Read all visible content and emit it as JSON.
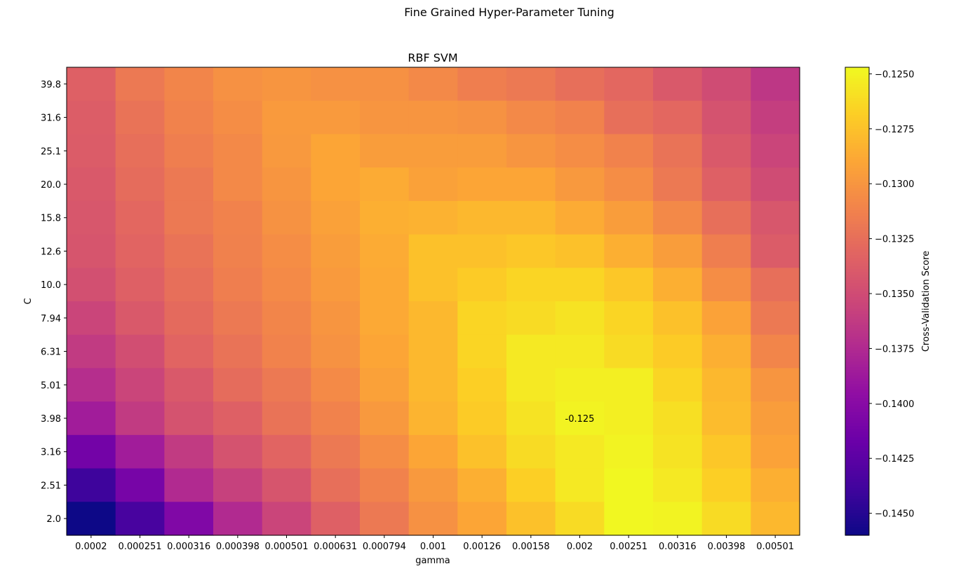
{
  "chart_data": {
    "type": "heatmap",
    "suptitle": "Fine Grained Hyper-Parameter Tuning",
    "title": "RBF SVM",
    "xlabel": "gamma",
    "ylabel": "C",
    "x_categories": [
      "0.0002",
      "0.000251",
      "0.000316",
      "0.000398",
      "0.000501",
      "0.000631",
      "0.000794",
      "0.001",
      "0.00126",
      "0.00158",
      "0.002",
      "0.00251",
      "0.00316",
      "0.00398",
      "0.00501"
    ],
    "y_categories": [
      "39.8",
      "31.6",
      "25.1",
      "20.0",
      "15.8",
      "12.6",
      "10.0",
      "7.94",
      "6.31",
      "5.01",
      "3.98",
      "3.16",
      "2.51",
      "2.0"
    ],
    "values": [
      [
        -0.1335,
        -0.1318,
        -0.131,
        -0.1303,
        -0.13,
        -0.1303,
        -0.1303,
        -0.1308,
        -0.1315,
        -0.1318,
        -0.1325,
        -0.133,
        -0.134,
        -0.135,
        -0.1365
      ],
      [
        -0.1337,
        -0.1322,
        -0.1312,
        -0.1305,
        -0.1297,
        -0.1297,
        -0.13,
        -0.13,
        -0.1302,
        -0.1308,
        -0.1312,
        -0.1325,
        -0.133,
        -0.1345,
        -0.136
      ],
      [
        -0.1338,
        -0.1325,
        -0.1315,
        -0.1308,
        -0.1298,
        -0.129,
        -0.1295,
        -0.1295,
        -0.1295,
        -0.13,
        -0.1305,
        -0.1312,
        -0.1322,
        -0.134,
        -0.1355
      ],
      [
        -0.134,
        -0.1327,
        -0.1318,
        -0.1308,
        -0.13,
        -0.129,
        -0.1287,
        -0.1293,
        -0.129,
        -0.129,
        -0.1298,
        -0.1305,
        -0.1318,
        -0.1335,
        -0.135
      ],
      [
        -0.1342,
        -0.133,
        -0.1318,
        -0.1312,
        -0.1302,
        -0.1293,
        -0.1285,
        -0.1283,
        -0.128,
        -0.128,
        -0.1287,
        -0.1295,
        -0.1308,
        -0.1325,
        -0.1342
      ],
      [
        -0.1343,
        -0.1332,
        -0.1322,
        -0.1313,
        -0.1305,
        -0.1295,
        -0.1287,
        -0.1275,
        -0.1275,
        -0.1272,
        -0.1275,
        -0.1285,
        -0.1295,
        -0.1315,
        -0.1338
      ],
      [
        -0.1347,
        -0.1335,
        -0.1325,
        -0.1315,
        -0.1307,
        -0.1297,
        -0.1288,
        -0.1275,
        -0.127,
        -0.1265,
        -0.1265,
        -0.1272,
        -0.1285,
        -0.1305,
        -0.1325
      ],
      [
        -0.1355,
        -0.134,
        -0.1328,
        -0.1318,
        -0.131,
        -0.13,
        -0.1288,
        -0.128,
        -0.1265,
        -0.1262,
        -0.1258,
        -0.1265,
        -0.1275,
        -0.1292,
        -0.1318
      ],
      [
        -0.1362,
        -0.1348,
        -0.1332,
        -0.1322,
        -0.1312,
        -0.1302,
        -0.129,
        -0.128,
        -0.1265,
        -0.1255,
        -0.1255,
        -0.1262,
        -0.127,
        -0.1285,
        -0.131
      ],
      [
        -0.1372,
        -0.1355,
        -0.134,
        -0.1327,
        -0.1318,
        -0.1307,
        -0.1293,
        -0.128,
        -0.1268,
        -0.1255,
        -0.1252,
        -0.1252,
        -0.1265,
        -0.128,
        -0.13
      ],
      [
        -0.1385,
        -0.1362,
        -0.1345,
        -0.1335,
        -0.1322,
        -0.1312,
        -0.1298,
        -0.1282,
        -0.127,
        -0.1258,
        -0.125,
        -0.1252,
        -0.126,
        -0.1278,
        -0.1295
      ],
      [
        -0.1412,
        -0.1385,
        -0.1362,
        -0.1345,
        -0.1332,
        -0.1318,
        -0.1305,
        -0.129,
        -0.1275,
        -0.1262,
        -0.1255,
        -0.125,
        -0.1258,
        -0.1272,
        -0.1292
      ],
      [
        -0.144,
        -0.141,
        -0.1375,
        -0.1358,
        -0.1343,
        -0.1325,
        -0.1312,
        -0.1298,
        -0.1285,
        -0.1268,
        -0.1255,
        -0.1248,
        -0.1255,
        -0.1268,
        -0.1285
      ],
      [
        -0.146,
        -0.1435,
        -0.1405,
        -0.1375,
        -0.1355,
        -0.1335,
        -0.1318,
        -0.1303,
        -0.129,
        -0.1275,
        -0.1262,
        -0.1248,
        -0.125,
        -0.1262,
        -0.128
      ]
    ],
    "annotation": {
      "text": "-0.125",
      "row": 10,
      "col": 10
    },
    "colorbar": {
      "label": "Cross-Validation Score",
      "vmin": -0.146,
      "vmax": -0.1247,
      "ticks": [
        "-0.1250",
        "-0.1275",
        "-0.1300",
        "-0.1325",
        "-0.1350",
        "-0.1375",
        "-0.1400",
        "-0.1425",
        "-0.1450"
      ],
      "tick_values": [
        -0.125,
        -0.1275,
        -0.13,
        -0.1325,
        -0.135,
        -0.1375,
        -0.14,
        -0.1425,
        -0.145
      ],
      "colormap": "plasma"
    }
  }
}
